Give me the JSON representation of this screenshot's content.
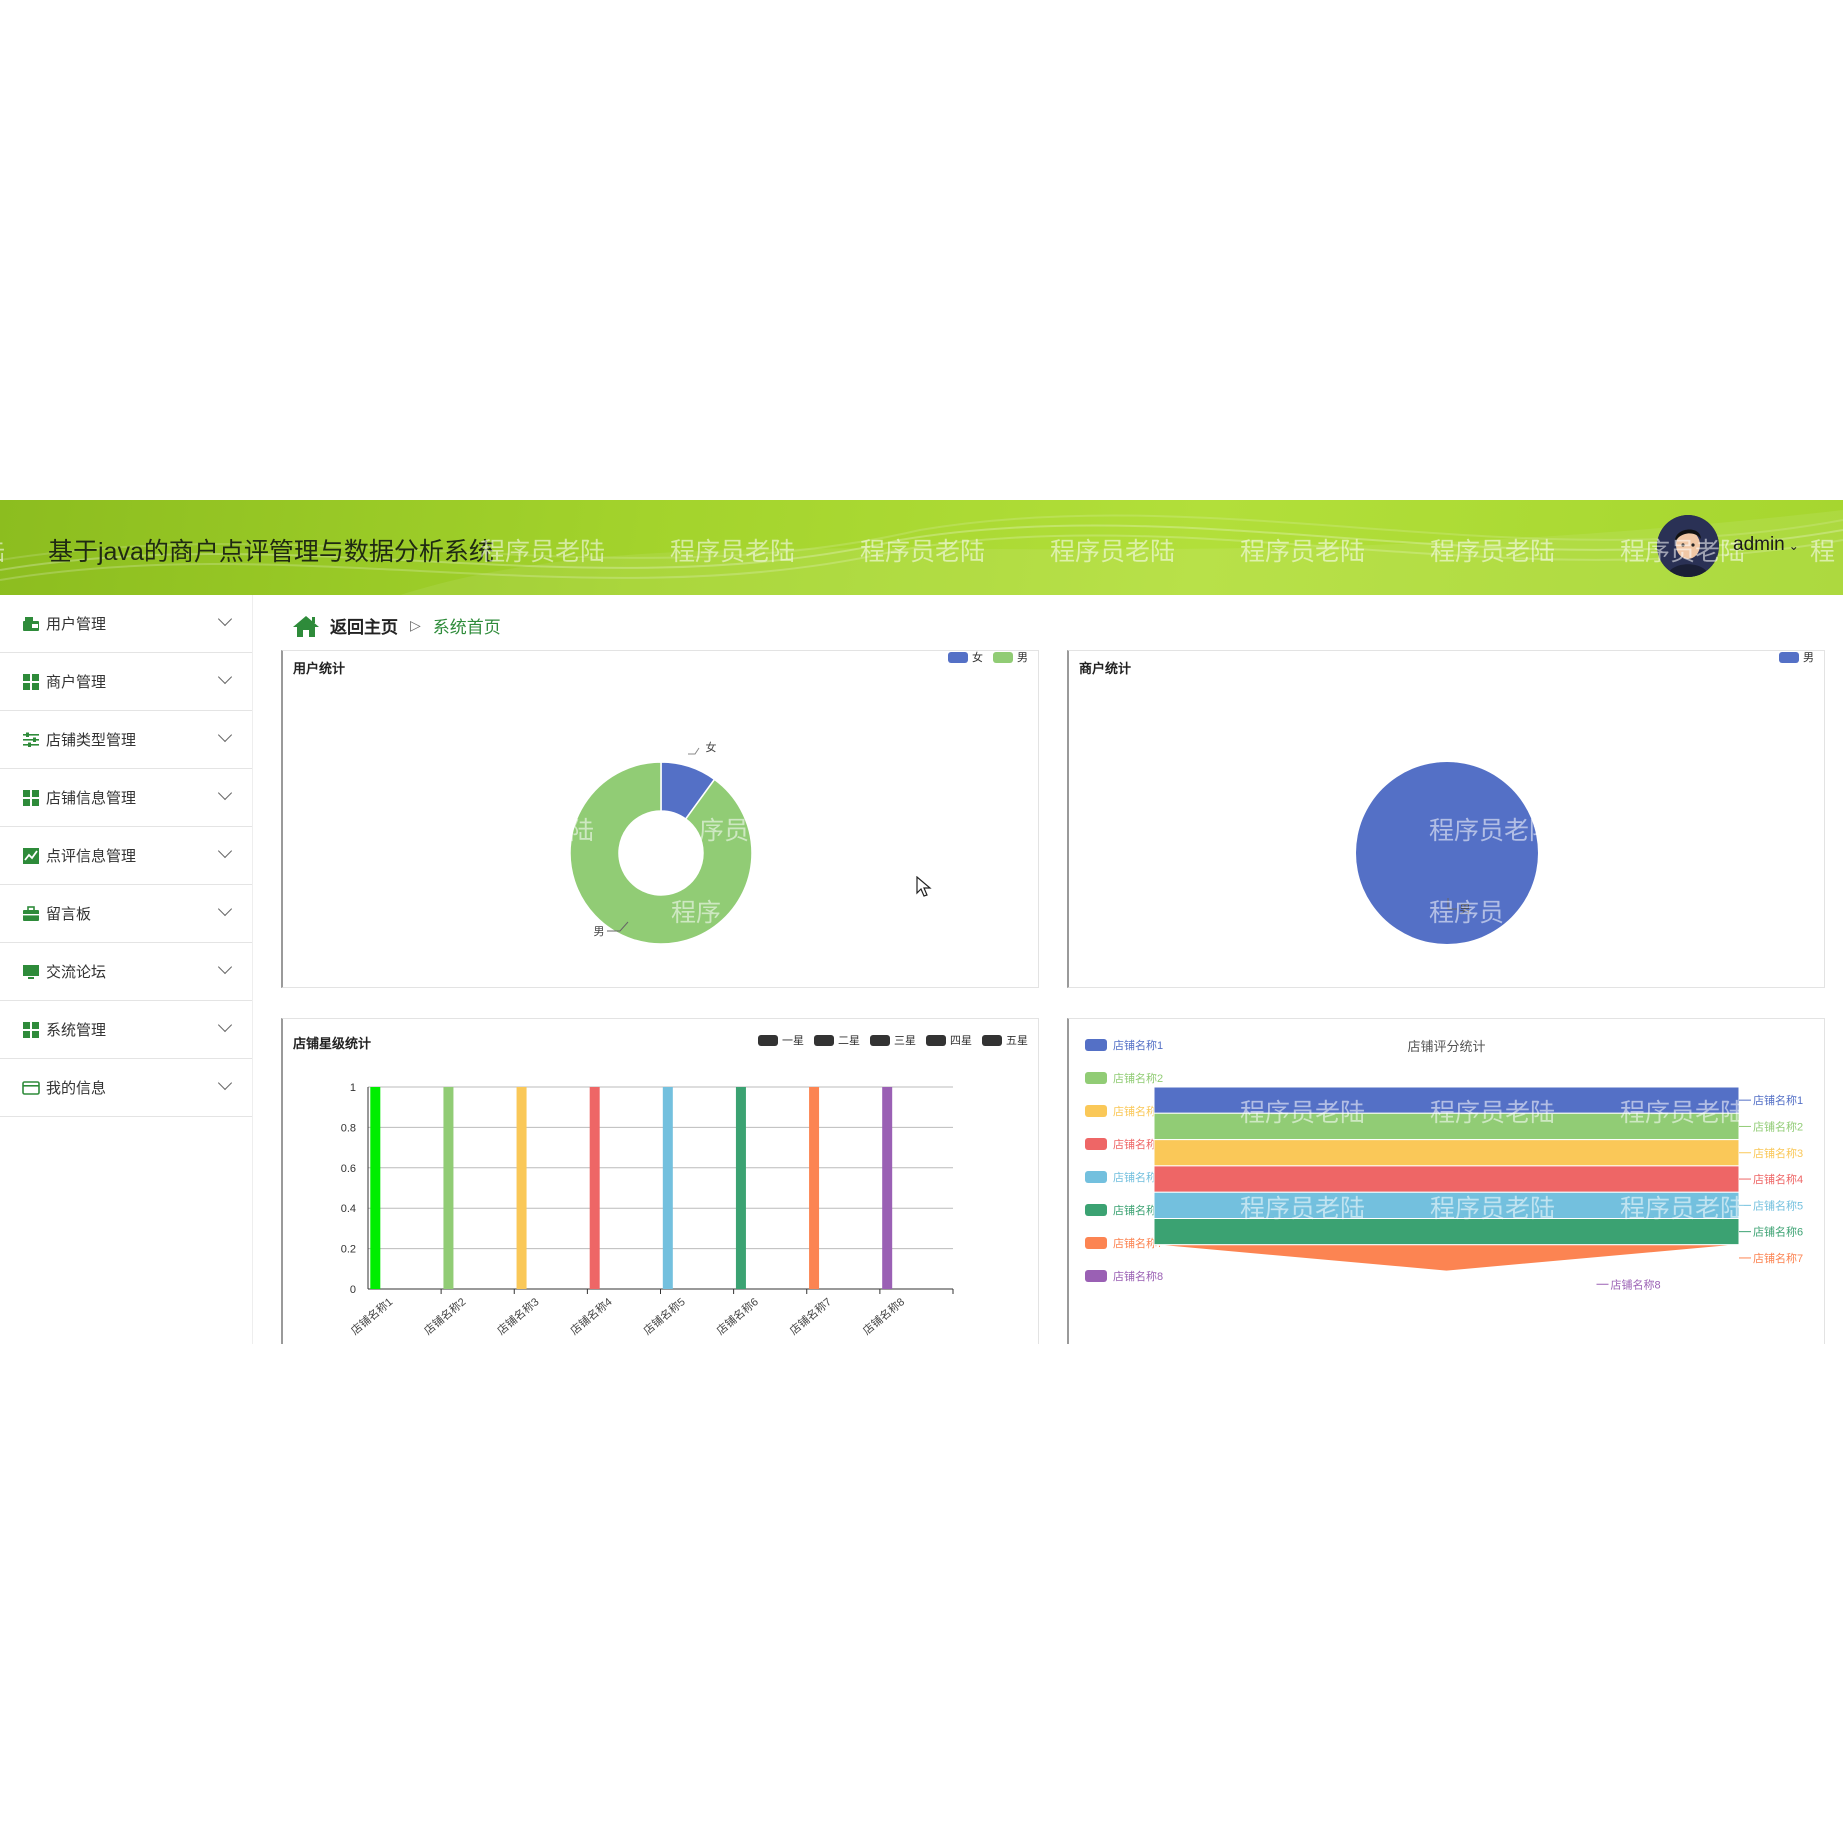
{
  "app": {
    "title": "基于java的商户点评管理与数据分析系统",
    "watermark": "程序员老陆",
    "user": "admin"
  },
  "sidebar": {
    "items": [
      {
        "label": "用户管理",
        "icon": "user-admin-icon"
      },
      {
        "label": "商户管理",
        "icon": "grid-icon"
      },
      {
        "label": "店铺类型管理",
        "icon": "sliders-icon"
      },
      {
        "label": "店铺信息管理",
        "icon": "grid-icon"
      },
      {
        "label": "点评信息管理",
        "icon": "chart-line-icon"
      },
      {
        "label": "留言板",
        "icon": "briefcase-icon"
      },
      {
        "label": "交流论坛",
        "icon": "monitor-icon"
      },
      {
        "label": "系统管理",
        "icon": "grid-icon"
      },
      {
        "label": "我的信息",
        "icon": "wallet-icon"
      }
    ]
  },
  "breadcrumb": {
    "home": "返回主页",
    "current": "系统首页"
  },
  "panels": {
    "user_stats": {
      "title": "用户统计"
    },
    "merchant_stats": {
      "title": "商户统计"
    },
    "star_stats": {
      "title": "店铺星级统计"
    },
    "score_stats": {
      "title": "店铺评分统计"
    }
  },
  "colors": {
    "header": "#a3d32c",
    "accent": "#2e8b3a",
    "blue": "#5470c6",
    "green": "#91cc75",
    "yellow": "#fac858",
    "red": "#ee6666",
    "cyan": "#73c0de",
    "teal": "#3ba272",
    "orange": "#fc8452",
    "purple": "#9a60b4"
  },
  "chart_data": [
    {
      "type": "pie",
      "title": "用户统计",
      "donut": true,
      "legend": [
        "女",
        "男"
      ],
      "slices": [
        {
          "name": "女",
          "value": 1,
          "color": "#5470c6"
        },
        {
          "name": "男",
          "value": 9,
          "color": "#91cc75"
        }
      ]
    },
    {
      "type": "pie",
      "title": "商户统计",
      "legend": [
        "男"
      ],
      "slices": [
        {
          "name": "男",
          "value": 1,
          "color": "#5470c6"
        }
      ]
    },
    {
      "type": "bar",
      "title": "店铺星级统计",
      "legend": [
        "一星",
        "二星",
        "三星",
        "四星",
        "五星"
      ],
      "categories": [
        "店铺名称1",
        "店铺名称2",
        "店铺名称3",
        "店铺名称4",
        "店铺名称5",
        "店铺名称6",
        "店铺名称7",
        "店铺名称8"
      ],
      "values": [
        1,
        1,
        1,
        1,
        1,
        1,
        1,
        1
      ],
      "bar_colors": [
        "#00ee00",
        "#91cc75",
        "#fac858",
        "#ee6666",
        "#73c0de",
        "#3ba272",
        "#fc8452",
        "#9a60b4"
      ],
      "yticks": [
        "0",
        "0.2",
        "0.4",
        "0.6",
        "0.8",
        "1"
      ],
      "ylim": [
        0,
        1
      ]
    },
    {
      "type": "funnel",
      "title": "店铺评分统计",
      "legend": [
        "店铺名称1",
        "店铺名称2",
        "店铺名称3",
        "店铺名称4",
        "店铺名称5",
        "店铺名称6",
        "店铺名称7",
        "店铺名称8"
      ],
      "values": [
        1,
        1,
        1,
        1,
        1,
        1,
        1,
        0
      ],
      "colors": [
        "#5470c6",
        "#91cc75",
        "#fac858",
        "#ee6666",
        "#73c0de",
        "#3ba272",
        "#fc8452",
        "#9a60b4"
      ]
    }
  ]
}
